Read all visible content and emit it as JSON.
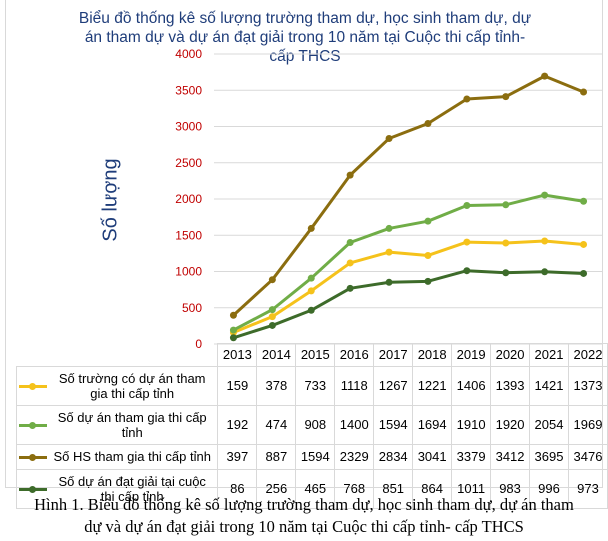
{
  "chart_data": {
    "type": "line",
    "title": "Biểu đồ thống kê số lượng trường tham dự, học sinh tham dự, dự án tham dự và dự án đạt giải trong 10 năm tại Cuộc thi cấp tỉnh- cấp THCS",
    "title_lines": [
      "Biểu đồ thống kê số lượng trường tham dự, học sinh tham dự, dự",
      "án tham dự và dự án đạt giải trong 10 năm tại Cuộc thi cấp tỉnh-",
      "cấp THCS"
    ],
    "xlabel": "",
    "ylabel": "Số lượng",
    "ylim": [
      0,
      4000
    ],
    "yticks": [
      0,
      500,
      1000,
      1500,
      2000,
      2500,
      3000,
      3500,
      4000
    ],
    "grid": true,
    "legend": "data-table-below",
    "categories": [
      "2013",
      "2014",
      "2015",
      "2016",
      "2017",
      "2018",
      "2019",
      "2020",
      "2021",
      "2022"
    ],
    "series": [
      {
        "name": "Số trường có dự án tham gia thi cấp tỉnh",
        "label_lines": [
          "Số trường có dự án tham",
          "gia thi cấp tỉnh"
        ],
        "color": "#f5c21b",
        "values": [
          159,
          378,
          733,
          1118,
          1267,
          1221,
          1406,
          1393,
          1421,
          1373
        ]
      },
      {
        "name": "Số dự án tham gia thi cấp tỉnh",
        "label_lines": [
          "Số dự án tham gia thi cấp",
          "tỉnh"
        ],
        "color": "#70ad47",
        "values": [
          192,
          474,
          908,
          1400,
          1594,
          1694,
          1910,
          1920,
          2054,
          1969
        ]
      },
      {
        "name": "Số HS tham gia thi cấp tỉnh",
        "label_lines": [
          "Số HS tham gia thi cấp tỉnh"
        ],
        "color": "#8b6d0f",
        "values": [
          397,
          887,
          1594,
          2329,
          2834,
          3041,
          3379,
          3412,
          3695,
          3476
        ]
      },
      {
        "name": "Số dự án đạt giải tại cuộc thi cấp tỉnh",
        "label_lines": [
          "Số dự án đạt giải tại cuộc",
          "thi cấp tỉnh"
        ],
        "color": "#3d6b2a",
        "values": [
          86,
          256,
          465,
          768,
          851,
          864,
          1011,
          983,
          996,
          973
        ]
      }
    ]
  },
  "caption_lines": [
    "Hình 1. Biểu đồ thống kê số lượng trường tham dự, học sinh tham dự, dự án tham",
    "dự và dự án đạt giải trong 10 năm tại Cuộc thi cấp tỉnh- cấp THCS"
  ]
}
